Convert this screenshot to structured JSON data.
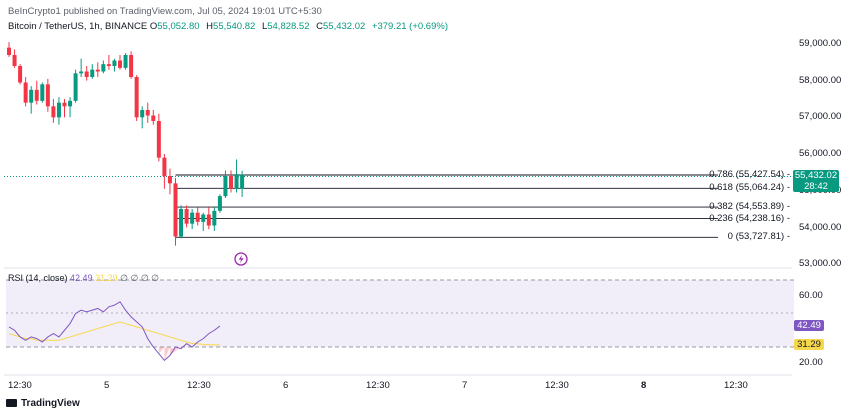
{
  "header": {
    "attribution": "BeInCrypto1 published on TradingView.com, Jul 05, 2024 19:01 UTC+5:30",
    "symbol": "Bitcoin / TetherUS, 1h, BINANCE",
    "open_label": "O",
    "open": "55,052.80",
    "high_label": "H",
    "high": "55,540.82",
    "low_label": "L",
    "low": "54,828.52",
    "close_label": "C",
    "close": "55,432.02",
    "change": "+379.21 (+0.69%)"
  },
  "price_axis": {
    "ticks": [
      "59,000.00",
      "58,000.00",
      "57,000.00",
      "56,000.00",
      "55,000.00",
      "54,000.00",
      "53,000.00"
    ],
    "last_price": "55,432.02",
    "countdown": "28:42"
  },
  "fibonacci": [
    {
      "label": "0.786 (55,427.54)",
      "value": 55427.54
    },
    {
      "label": "0.618 (55,064.24)",
      "value": 55064.24
    },
    {
      "label": "0.382 (54,553.89)",
      "value": 54553.89
    },
    {
      "label": "0.236 (54,238.16)",
      "value": 54238.16
    },
    {
      "label": "0 (53,727.81)",
      "value": 53727.81
    }
  ],
  "rsi": {
    "title": "RSI (14, close)",
    "value": "42.49",
    "ma_value": "31.29",
    "nan_values": "∅ ∅ ∅ ∅",
    "axis_ticks": [
      "60.00",
      "20.00"
    ]
  },
  "time_axis": [
    "12:30",
    "5",
    "12:30",
    "6",
    "12:30",
    "7",
    "12:30",
    "8",
    "12:30"
  ],
  "branding": {
    "logo_text": "TradingView"
  },
  "colors": {
    "up": "#089981",
    "down": "#f23645",
    "rsi": "#7e57c2",
    "rsi_ma": "#f7d84c",
    "fib": "#131722"
  },
  "chart_data": {
    "type": "candlestick",
    "title": "Bitcoin / TetherUS, 1h, BINANCE",
    "ylim": [
      52800,
      59300
    ],
    "candles": [
      {
        "o": 58900,
        "h": 59050,
        "l": 58650,
        "c": 58700
      },
      {
        "o": 58700,
        "h": 58850,
        "l": 58350,
        "c": 58400
      },
      {
        "o": 58400,
        "h": 58450,
        "l": 57900,
        "c": 57950
      },
      {
        "o": 57950,
        "h": 58100,
        "l": 57300,
        "c": 57400
      },
      {
        "o": 57400,
        "h": 57850,
        "l": 57100,
        "c": 57750
      },
      {
        "o": 57750,
        "h": 58000,
        "l": 57350,
        "c": 57450
      },
      {
        "o": 57450,
        "h": 57950,
        "l": 57400,
        "c": 57900
      },
      {
        "o": 57900,
        "h": 58050,
        "l": 57150,
        "c": 57300
      },
      {
        "o": 57300,
        "h": 57500,
        "l": 56850,
        "c": 57000
      },
      {
        "o": 57000,
        "h": 57550,
        "l": 56800,
        "c": 57400
      },
      {
        "o": 57400,
        "h": 57500,
        "l": 57000,
        "c": 57300
      },
      {
        "o": 57300,
        "h": 57550,
        "l": 57000,
        "c": 57450
      },
      {
        "o": 57450,
        "h": 58300,
        "l": 57400,
        "c": 58200
      },
      {
        "o": 58200,
        "h": 58600,
        "l": 58100,
        "c": 58250
      },
      {
        "o": 58250,
        "h": 58400,
        "l": 58000,
        "c": 58100
      },
      {
        "o": 58100,
        "h": 58450,
        "l": 58050,
        "c": 58300
      },
      {
        "o": 58300,
        "h": 58500,
        "l": 58100,
        "c": 58250
      },
      {
        "o": 58250,
        "h": 58550,
        "l": 58200,
        "c": 58450
      },
      {
        "o": 58450,
        "h": 58700,
        "l": 58300,
        "c": 58400
      },
      {
        "o": 58400,
        "h": 58600,
        "l": 58250,
        "c": 58550
      },
      {
        "o": 58550,
        "h": 58700,
        "l": 58300,
        "c": 58350
      },
      {
        "o": 58350,
        "h": 58750,
        "l": 58300,
        "c": 58700
      },
      {
        "o": 58700,
        "h": 58800,
        "l": 58050,
        "c": 58100
      },
      {
        "o": 58100,
        "h": 58150,
        "l": 56900,
        "c": 57000
      },
      {
        "o": 57000,
        "h": 57300,
        "l": 56700,
        "c": 57200
      },
      {
        "o": 57200,
        "h": 57400,
        "l": 56850,
        "c": 57050
      },
      {
        "o": 57050,
        "h": 57200,
        "l": 56800,
        "c": 56900
      },
      {
        "o": 56900,
        "h": 57100,
        "l": 55800,
        "c": 55900
      },
      {
        "o": 55900,
        "h": 56000,
        "l": 55050,
        "c": 55400
      },
      {
        "o": 55400,
        "h": 55600,
        "l": 54900,
        "c": 55200
      },
      {
        "o": 55200,
        "h": 55350,
        "l": 53500,
        "c": 53750
      },
      {
        "o": 53750,
        "h": 54600,
        "l": 53700,
        "c": 54500
      },
      {
        "o": 54500,
        "h": 54600,
        "l": 54000,
        "c": 54100
      },
      {
        "o": 54100,
        "h": 54500,
        "l": 53950,
        "c": 54400
      },
      {
        "o": 54400,
        "h": 54550,
        "l": 54050,
        "c": 54150
      },
      {
        "o": 54150,
        "h": 54400,
        "l": 53900,
        "c": 54350
      },
      {
        "o": 54350,
        "h": 54550,
        "l": 53950,
        "c": 54050
      },
      {
        "o": 54050,
        "h": 54550,
        "l": 53900,
        "c": 54450
      },
      {
        "o": 54450,
        "h": 54900,
        "l": 54400,
        "c": 54850
      },
      {
        "o": 54850,
        "h": 55550,
        "l": 54800,
        "c": 55400
      },
      {
        "o": 55400,
        "h": 55550,
        "l": 54950,
        "c": 55050
      },
      {
        "o": 55050,
        "h": 55850,
        "l": 54950,
        "c": 55450
      },
      {
        "o": 55052.8,
        "h": 55540.82,
        "l": 54828.52,
        "c": 55432.02
      }
    ],
    "rsi_series": [
      42,
      40,
      36,
      34,
      36,
      35,
      33,
      36,
      38,
      36,
      40,
      44,
      50,
      52,
      51,
      52,
      53,
      51,
      54,
      55,
      57,
      52,
      48,
      45,
      42,
      35,
      30,
      26,
      22,
      25,
      30,
      29,
      32,
      30,
      33,
      35,
      38,
      40,
      42.49
    ],
    "rsi_ma_series": [
      38,
      37,
      36,
      35,
      35,
      34,
      34,
      34,
      34,
      34,
      35,
      36,
      37,
      38,
      39,
      40,
      41,
      42,
      43,
      44,
      45,
      44,
      43,
      42,
      41,
      40,
      39,
      38,
      37,
      36,
      35,
      34,
      33,
      32,
      32,
      31.5,
      31.4,
      31.3,
      31.29
    ],
    "rsi_levels": [
      70,
      50,
      30
    ],
    "rsi_ylim": [
      13,
      77
    ]
  }
}
